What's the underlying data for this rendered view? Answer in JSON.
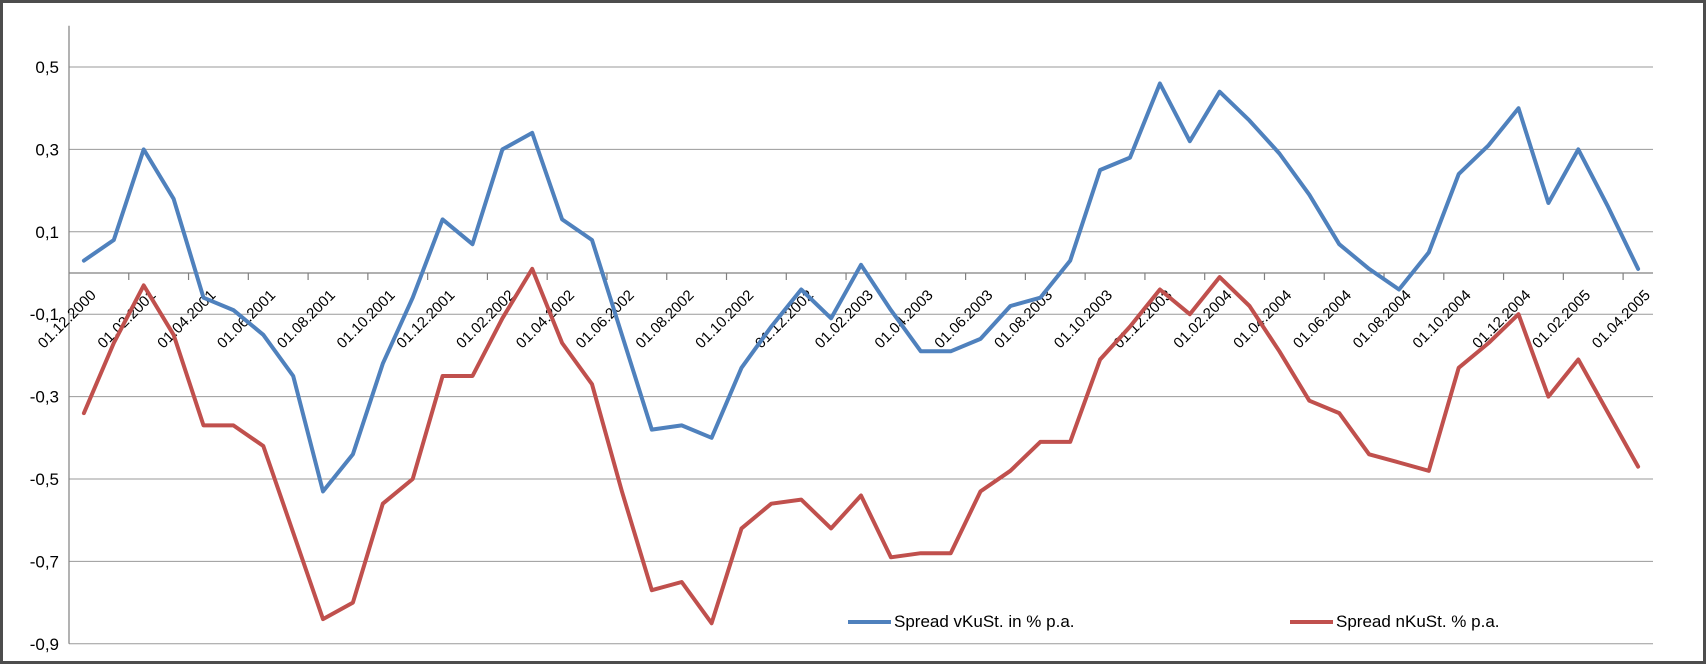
{
  "legend": {
    "item1": "Spread vKuSt. in % p.a.",
    "item2": "Spread nKuSt. % p.a."
  },
  "chart_data": {
    "type": "line",
    "title": "",
    "xlabel": "",
    "ylabel": "",
    "ylim": [
      -0.9,
      0.6
    ],
    "grid": "horizontal",
    "legend_position": "bottom-inline",
    "y_axis_tick_labels": [
      "0,5",
      "0,3",
      "0,1",
      "-0,1",
      "-0,3",
      "-0,5",
      "-0,7",
      "-0,9"
    ],
    "y_axis_tick_values": [
      0.5,
      0.3,
      0.1,
      -0.1,
      -0.3,
      -0.5,
      -0.7,
      -0.9
    ],
    "x_axis_shown_labels": [
      "01.12.2000",
      "01.02.2001",
      "01.04.2001",
      "01.06.2001",
      "01.08.2001",
      "01.10.2001",
      "01.12.2001",
      "01.02.2002",
      "01.04.2002",
      "01.06.2002",
      "01.08.2002",
      "01.10.2002",
      "01.12.2002",
      "01.02.2003",
      "01.04.2003",
      "01.06.2003",
      "01.08.2003",
      "01.10.2003",
      "01.12.2003",
      "01.02.2004",
      "01.04.2004",
      "01.06.2004",
      "01.08.2004",
      "01.10.2004",
      "01.12.2004",
      "01.02.2005",
      "01.04.2005"
    ],
    "x": [
      "01.12.2000",
      "01.01.2001",
      "01.02.2001",
      "01.03.2001",
      "01.04.2001",
      "01.05.2001",
      "01.06.2001",
      "01.07.2001",
      "01.08.2001",
      "01.09.2001",
      "01.10.2001",
      "01.11.2001",
      "01.12.2001",
      "01.01.2002",
      "01.02.2002",
      "01.03.2002",
      "01.04.2002",
      "01.05.2002",
      "01.06.2002",
      "01.07.2002",
      "01.08.2002",
      "01.09.2002",
      "01.10.2002",
      "01.11.2002",
      "01.12.2002",
      "01.01.2003",
      "01.02.2003",
      "01.03.2003",
      "01.04.2003",
      "01.05.2003",
      "01.06.2003",
      "01.07.2003",
      "01.08.2003",
      "01.09.2003",
      "01.10.2003",
      "01.11.2003",
      "01.12.2003",
      "01.01.2004",
      "01.02.2004",
      "01.03.2004",
      "01.04.2004",
      "01.05.2004",
      "01.06.2004",
      "01.07.2004",
      "01.08.2004",
      "01.09.2004",
      "01.10.2004",
      "01.11.2004",
      "01.12.2004",
      "01.01.2005",
      "01.02.2005",
      "01.03.2005",
      "01.04.2005"
    ],
    "series": [
      {
        "name": "Spread vKuSt. in % p.a.",
        "color": "#4F81BD",
        "values": [
          0.03,
          0.08,
          0.3,
          0.18,
          -0.06,
          -0.09,
          -0.15,
          -0.25,
          -0.53,
          -0.44,
          -0.22,
          -0.06,
          0.13,
          0.07,
          0.3,
          0.34,
          0.13,
          0.08,
          -0.15,
          -0.38,
          -0.37,
          -0.4,
          -0.23,
          -0.13,
          -0.04,
          -0.11,
          0.02,
          -0.09,
          -0.19,
          -0.19,
          -0.16,
          -0.08,
          -0.06,
          0.03,
          0.25,
          0.28,
          0.46,
          0.32,
          0.44,
          0.37,
          0.29,
          0.19,
          0.07,
          0.01,
          -0.04,
          0.05,
          0.24,
          0.31,
          0.4,
          0.17,
          0.3,
          0.16,
          0.01
        ]
      },
      {
        "name": "Spread nKuSt. % p.a.",
        "color": "#C0504D",
        "values": [
          -0.34,
          -0.17,
          -0.03,
          -0.15,
          -0.37,
          -0.37,
          -0.42,
          -0.63,
          -0.84,
          -0.8,
          -0.56,
          -0.5,
          -0.25,
          -0.25,
          -0.11,
          0.01,
          -0.17,
          -0.27,
          -0.53,
          -0.77,
          -0.75,
          -0.85,
          -0.62,
          -0.56,
          -0.55,
          -0.62,
          -0.54,
          -0.69,
          -0.68,
          -0.68,
          -0.53,
          -0.48,
          -0.41,
          -0.41,
          -0.21,
          -0.13,
          -0.04,
          -0.1,
          -0.01,
          -0.08,
          -0.19,
          -0.31,
          -0.34,
          -0.44,
          -0.46,
          -0.48,
          -0.23,
          -0.17,
          -0.1,
          -0.3,
          -0.21,
          -0.34,
          -0.47
        ]
      }
    ]
  }
}
